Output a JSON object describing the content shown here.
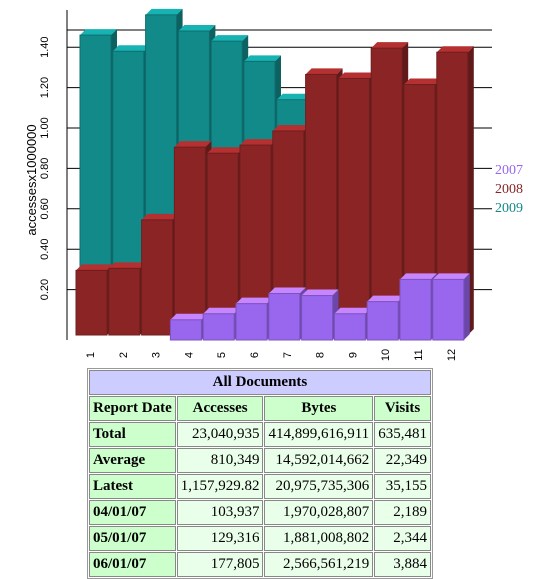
{
  "chart_data": {
    "type": "bar3d",
    "y_label": "accessesx1000000",
    "categories": [
      "1",
      "2",
      "3",
      "4",
      "5",
      "6",
      "7",
      "8",
      "9",
      "10",
      "11",
      "12"
    ],
    "series": [
      {
        "name": "2007",
        "color": "#9966ee",
        "values": [
          null,
          null,
          null,
          0.1,
          0.13,
          0.18,
          0.23,
          0.22,
          0.13,
          0.19,
          0.3,
          0.3
        ]
      },
      {
        "name": "2008",
        "color": "#8b2525",
        "values": [
          0.32,
          0.33,
          0.57,
          0.93,
          0.9,
          0.94,
          1.01,
          1.29,
          1.27,
          1.42,
          1.24,
          1.4
        ]
      },
      {
        "name": "2009",
        "color": "#128a8a",
        "values": [
          1.46,
          1.38,
          1.56,
          1.48,
          1.43,
          1.33,
          1.14,
          null,
          null,
          null,
          null,
          null
        ]
      }
    ],
    "ylim": [
      0,
      1.5
    ],
    "yticks": [
      {
        "value": 0.2,
        "label": "0.20"
      },
      {
        "value": 0.4,
        "label": "0.40"
      },
      {
        "value": 0.6,
        "label": "0.60"
      },
      {
        "value": 0.8,
        "label": "0.80"
      },
      {
        "value": 1.0,
        "label": "1.00"
      },
      {
        "value": 1.2,
        "label": "1.20"
      },
      {
        "value": 1.4,
        "label": "1.40"
      }
    ],
    "grid": true
  },
  "table": {
    "title": "All Documents",
    "header": [
      "Report Date",
      "Accesses",
      "Bytes",
      "Visits"
    ],
    "rows": [
      [
        "Total",
        "23,040,935",
        "414,899,616,911",
        "635,481"
      ],
      [
        "Average",
        "810,349",
        "14,592,014,662",
        "22,349"
      ],
      [
        "Latest",
        "1,157,929.82",
        "20,975,735,306",
        "35,155"
      ],
      [
        "04/01/07",
        "103,937",
        "1,970,028,807",
        "2,189"
      ],
      [
        "05/01/07",
        "129,316",
        "1,881,008,802",
        "2,344"
      ],
      [
        "06/01/07",
        "177,805",
        "2,566,561,219",
        "3,884"
      ]
    ]
  }
}
